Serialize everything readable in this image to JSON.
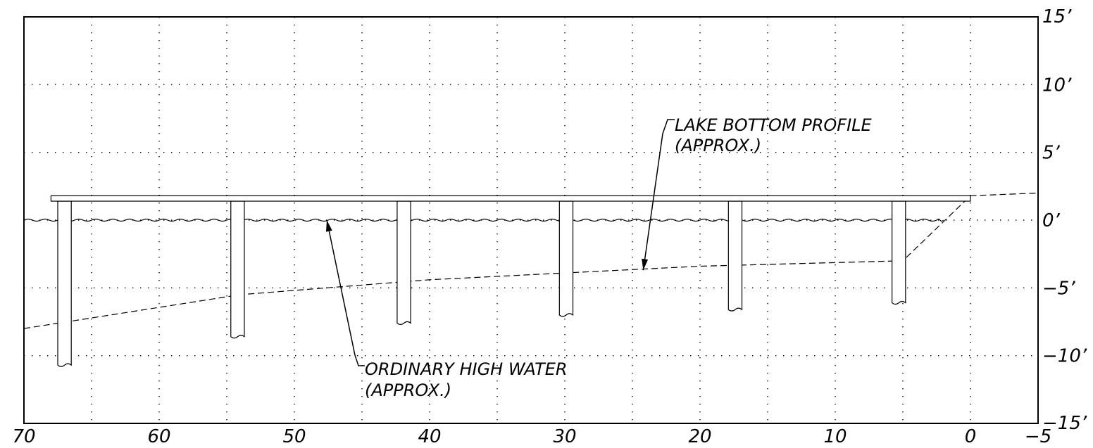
{
  "chart_data": {
    "type": "diagram",
    "x_axis": {
      "range": [
        70,
        -5
      ],
      "ticks": [
        70,
        60,
        50,
        40,
        30,
        20,
        10,
        0,
        -5
      ],
      "tick_labels": [
        "70",
        "60",
        "50",
        "40",
        "30",
        "20",
        "10",
        "0",
        "−5"
      ]
    },
    "y_axis": {
      "range": [
        -15,
        15
      ],
      "ticks": [
        15,
        10,
        5,
        0,
        -5,
        -10,
        -15
      ],
      "tick_labels": [
        "15’",
        "10’",
        "5’",
        "0’",
        "−5’",
        "−10’",
        "−15’"
      ]
    },
    "grid": true,
    "deck": {
      "x_start": 68,
      "x_end": 0,
      "y_top": 1.8,
      "y_bottom": 1.4
    },
    "ordinary_high_water": {
      "y": 0,
      "x_start": 70,
      "x_end": 2
    },
    "piles": [
      {
        "x_left": 67.5,
        "x_right": 66.5,
        "y_bottom": -10.7
      },
      {
        "x_left": 54.7,
        "x_right": 53.7,
        "y_bottom": -8.6
      },
      {
        "x_left": 42.4,
        "x_right": 41.4,
        "y_bottom": -7.6
      },
      {
        "x_left": 30.4,
        "x_right": 29.4,
        "y_bottom": -7.0
      },
      {
        "x_left": 17.9,
        "x_right": 16.9,
        "y_bottom": -6.6
      },
      {
        "x_left": 5.8,
        "x_right": 4.8,
        "y_bottom": -6.1
      }
    ],
    "lake_bottom_profile": {
      "points": [
        [
          70,
          -8.0
        ],
        [
          54,
          -5.5
        ],
        [
          40,
          -4.4
        ],
        [
          20,
          -3.4
        ],
        [
          5,
          -3.0
        ],
        [
          0,
          1.8
        ],
        [
          -5,
          2.0
        ]
      ]
    },
    "annotations": {
      "lake_bottom_line1": "LAKE BOTTOM PROFILE",
      "lake_bottom_line2": "(APPROX.)",
      "high_water_line1": "ORDINARY HIGH WATER",
      "high_water_line2": "(APPROX.)"
    }
  }
}
